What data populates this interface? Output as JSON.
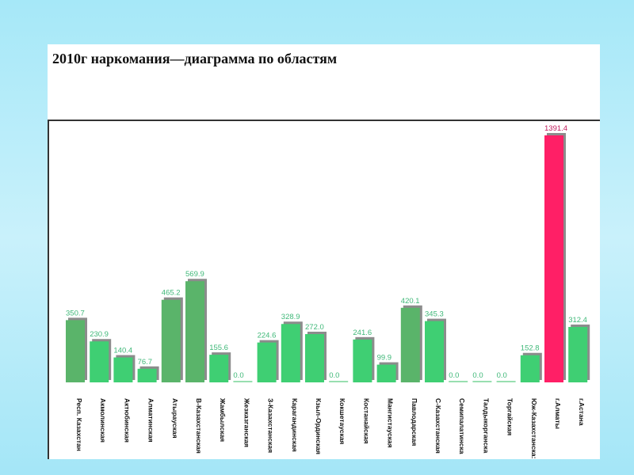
{
  "slide": {
    "title": "2010г наркомания—диаграмма  по областям"
  },
  "chart_data": {
    "type": "bar",
    "title": "2010г наркомания—диаграмма  по областям",
    "xlabel": "",
    "ylabel": "",
    "ylim": [
      0,
      1391.4
    ],
    "grid": false,
    "legend": "none",
    "colors": {
      "bar": "#3fcf73",
      "bar_dark": "#5ab46a",
      "bar_highlight": "#ff1f66",
      "shadow": "#8c8c8c",
      "value_label": "#3fb878",
      "value_label_highlight": "#c0185a",
      "baseline": "#5ccc80"
    },
    "categories": [
      "Респ. Казахстан",
      "Акмолинская",
      "Актюбинская",
      "Алматинская",
      "Атырауская",
      "В-Казахстанская",
      "Жамбылская",
      "Жезказганская",
      "З-Казахстанская",
      "Карагандинская",
      "Кзыл-Ординская",
      "Кокшетауская",
      "Костанайская",
      "Мангистауская",
      "Павлодарская",
      "С-Казахстанская",
      "Семипалатинска",
      "Талдыкорганска",
      "Торгайская",
      "Юж-Казахстанска:",
      "г.Алматы",
      "г.Астана"
    ],
    "values": [
      350.7,
      230.9,
      140.4,
      76.7,
      465.2,
      569.9,
      155.6,
      0.0,
      224.6,
      328.9,
      272.0,
      0.0,
      241.6,
      99.9,
      420.1,
      345.3,
      0.0,
      0.0,
      0.0,
      152.8,
      1391.4,
      312.4
    ],
    "value_labels": [
      "350.7",
      "230.9",
      "140.4",
      "76.7",
      "465.2",
      "569.9",
      "155.6",
      "0.0",
      "224.6",
      "328.9",
      "272.0",
      "0.0",
      "241.6",
      "99.9",
      "420.1",
      "345.3",
      "0.0",
      "0.0",
      "0.0",
      "152.8",
      "1391.4",
      "312.4"
    ],
    "bar_tone": [
      "dark",
      "normal",
      "normal",
      "normal",
      "dark",
      "dark",
      "normal",
      "normal",
      "normal",
      "normal",
      "normal",
      "normal",
      "normal",
      "normal",
      "dark",
      "normal",
      "normal",
      "normal",
      "normal",
      "normal",
      "highlight",
      "normal"
    ]
  }
}
